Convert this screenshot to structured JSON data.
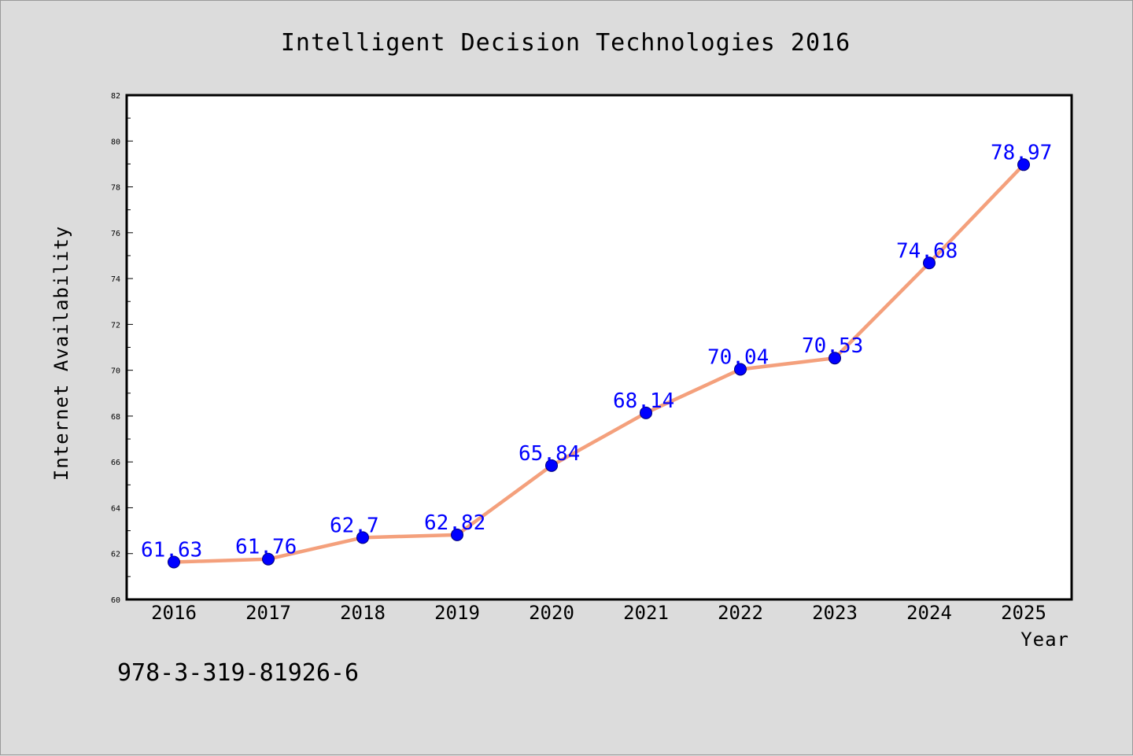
{
  "colors": {
    "figure_background": "#dcdcdc",
    "plot_background": "#ffffff",
    "line": "#f4a07c",
    "marker": "#0000ff",
    "data_label": "#0000ff"
  },
  "footer": {
    "isbn": "978-3-319-81926-6"
  },
  "chart_data": {
    "type": "line",
    "title": "Intelligent Decision Technologies 2016",
    "xlabel": "Year",
    "ylabel": "Internet Availability",
    "categories": [
      "2016",
      "2017",
      "2018",
      "2019",
      "2020",
      "2021",
      "2022",
      "2023",
      "2024",
      "2025"
    ],
    "series": [
      {
        "values": [
          61.63,
          61.76,
          62.7,
          62.82,
          65.84,
          68.14,
          70.04,
          70.53,
          74.68,
          78.97
        ],
        "labels": [
          "61.63",
          "61.76",
          "62.7",
          "62.82",
          "65.84",
          "68.14",
          "70.04",
          "70.53",
          "74.68",
          "78.97"
        ]
      }
    ],
    "ylim": [
      60,
      82
    ],
    "yticks": [
      60,
      62,
      64,
      66,
      68,
      70,
      72,
      74,
      76,
      78,
      80,
      82
    ],
    "grid": false,
    "legend": "none",
    "marker": "circle"
  }
}
